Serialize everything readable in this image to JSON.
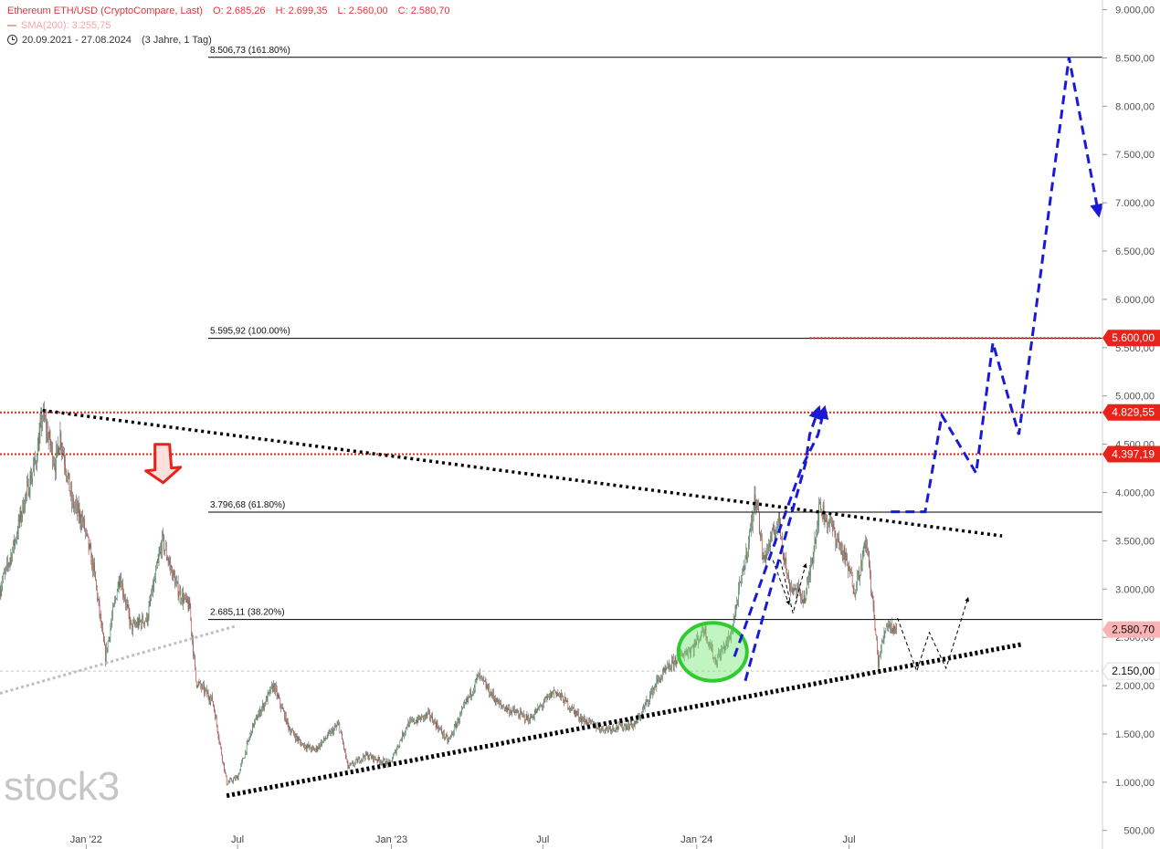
{
  "header": {
    "instrument": "Ethereum ETH/USD (CryptoCompare, Last)",
    "open": "O: 2.685,26",
    "high": "H: 2.699,35",
    "low": "L: 2.560,00",
    "close": "C: 2.580,70",
    "sma_label": "SMA(200): 3.255,75",
    "date_range": "20.09.2021 - 27.08.2024",
    "period": "(3 Jahre, 1 Tag)"
  },
  "logo_text": "stock3",
  "colors": {
    "candle_up": "#26a65b",
    "candle_down": "#d9342b",
    "accent_red": "#e8231a",
    "projection_blue": "#1a1ad6",
    "trend_black": "#000000",
    "support_grey": "#bfbfbf",
    "ellipse_green": "#2ecc2e"
  },
  "chart_data": {
    "type": "candlestick",
    "x_range": [
      "2021-09-20",
      "2024-08-27"
    ],
    "x_ticks": [
      "Jan '22",
      "Jul",
      "Jan '23",
      "Jul",
      "Jan '24",
      "Jul"
    ],
    "ylim": [
      450,
      9100
    ],
    "y_ticks": [
      {
        "v": 9000,
        "label": "9.000,00"
      },
      {
        "v": 8500,
        "label": "8.500,00"
      },
      {
        "v": 8000,
        "label": "8.000,00"
      },
      {
        "v": 7500,
        "label": "7.500,00"
      },
      {
        "v": 7000,
        "label": "7.000,00"
      },
      {
        "v": 6500,
        "label": "6.500,00"
      },
      {
        "v": 6000,
        "label": "6.000,00"
      },
      {
        "v": 5500,
        "label": "5.500,00"
      },
      {
        "v": 5000,
        "label": "5.000,00"
      },
      {
        "v": 4500,
        "label": "4.500,00"
      },
      {
        "v": 4000,
        "label": "4.000,00"
      },
      {
        "v": 3500,
        "label": "3.500,00"
      },
      {
        "v": 3000,
        "label": "3.000,00"
      },
      {
        "v": 2500,
        "label": "2.500,00"
      },
      {
        "v": 2000,
        "label": "2.000,00"
      },
      {
        "v": 1500,
        "label": "1.500,00"
      },
      {
        "v": 1000,
        "label": "1.000,00"
      },
      {
        "v": 500,
        "label": "500,00"
      }
    ],
    "fib_levels": [
      {
        "value": 8506.73,
        "label": "8.506,73 (161.80%)"
      },
      {
        "value": 5595.92,
        "label": "5.595,92 (100.00%)"
      },
      {
        "value": 3796.68,
        "label": "3.796,68 (61.80%)"
      },
      {
        "value": 2685.11,
        "label": "2.685,11 (38.20%)"
      }
    ],
    "price_tags": [
      {
        "value": 5600,
        "label": "5.600,00",
        "style": "red"
      },
      {
        "value": 4829.55,
        "label": "4.829,55",
        "style": "red"
      },
      {
        "value": 4397.19,
        "label": "4.397,19",
        "style": "red"
      },
      {
        "value": 2580.7,
        "label": "2.580,70",
        "style": "pink"
      },
      {
        "value": 2150,
        "label": "2.150,00",
        "style": "white"
      }
    ],
    "red_dotted_levels": [
      4829.55,
      4397.19
    ],
    "red_dotted_partial": {
      "value": 5600,
      "from": "2024-05-15"
    },
    "support_dotted_level": 2150,
    "price_path": [
      [
        "2021-09-20",
        3000
      ],
      [
        "2021-10-05",
        3400
      ],
      [
        "2021-10-20",
        3950
      ],
      [
        "2021-11-01",
        4300
      ],
      [
        "2021-11-10",
        4800
      ],
      [
        "2021-11-25",
        4300
      ],
      [
        "2021-12-01",
        4600
      ],
      [
        "2021-12-15",
        3900
      ],
      [
        "2021-12-28",
        3700
      ],
      [
        "2022-01-10",
        3200
      ],
      [
        "2022-01-24",
        2300
      ],
      [
        "2022-02-10",
        3150
      ],
      [
        "2022-02-24",
        2600
      ],
      [
        "2022-03-15",
        2700
      ],
      [
        "2022-04-02",
        3500
      ],
      [
        "2022-04-20",
        3000
      ],
      [
        "2022-05-05",
        2800
      ],
      [
        "2022-05-12",
        2050
      ],
      [
        "2022-06-01",
        1850
      ],
      [
        "2022-06-18",
        990
      ],
      [
        "2022-07-01",
        1050
      ],
      [
        "2022-07-20",
        1600
      ],
      [
        "2022-08-13",
        2000
      ],
      [
        "2022-09-01",
        1550
      ],
      [
        "2022-09-15",
        1400
      ],
      [
        "2022-10-01",
        1330
      ],
      [
        "2022-10-30",
        1600
      ],
      [
        "2022-11-10",
        1150
      ],
      [
        "2022-12-01",
        1280
      ],
      [
        "2022-12-30",
        1190
      ],
      [
        "2023-01-20",
        1600
      ],
      [
        "2023-02-15",
        1700
      ],
      [
        "2023-03-10",
        1420
      ],
      [
        "2023-04-15",
        2100
      ],
      [
        "2023-05-10",
        1800
      ],
      [
        "2023-06-15",
        1650
      ],
      [
        "2023-07-15",
        1950
      ],
      [
        "2023-08-17",
        1650
      ],
      [
        "2023-09-10",
        1550
      ],
      [
        "2023-10-20",
        1600
      ],
      [
        "2023-11-15",
        2050
      ],
      [
        "2023-12-10",
        2300
      ],
      [
        "2023-12-28",
        2400
      ],
      [
        "2024-01-10",
        2600
      ],
      [
        "2024-01-23",
        2250
      ],
      [
        "2024-02-10",
        2500
      ],
      [
        "2024-03-01",
        3400
      ],
      [
        "2024-03-12",
        4000
      ],
      [
        "2024-03-20",
        3300
      ],
      [
        "2024-04-08",
        3700
      ],
      [
        "2024-04-20",
        3050
      ],
      [
        "2024-05-10",
        2900
      ],
      [
        "2024-05-27",
        3850
      ],
      [
        "2024-06-10",
        3650
      ],
      [
        "2024-06-25",
        3350
      ],
      [
        "2024-07-08",
        3000
      ],
      [
        "2024-07-22",
        3500
      ],
      [
        "2024-08-05",
        2250
      ],
      [
        "2024-08-15",
        2650
      ],
      [
        "2024-08-27",
        2580.7
      ]
    ],
    "annotations": {
      "red_arrow": {
        "date": "2022-04-02",
        "value": 4120
      },
      "green_ellipse": {
        "center": [
          "2024-01-20",
          2350
        ],
        "date_span": [
          "2023-12-10",
          "2024-03-01"
        ],
        "value_span": [
          2050,
          2650
        ]
      },
      "resistance_trendline": {
        "from": [
          "2021-11-10",
          4850
        ],
        "to": [
          "2024-12-31",
          3550
        ]
      },
      "support_trendline": {
        "from": [
          "2022-06-18",
          860
        ],
        "to": [
          "2025-01-25",
          2430
        ]
      },
      "grey_support_line": {
        "from": [
          "2021-09-20",
          1920
        ],
        "to": [
          "2022-06-30",
          2620
        ]
      },
      "blue_projections": [
        [
          [
            "2024-02-28",
            2050
          ],
          [
            "2024-05-10",
            4300
          ],
          [
            "2024-05-15",
            4600
          ],
          [
            "2024-05-25",
            4850
          ]
        ],
        [
          [
            "2024-02-15",
            2300
          ],
          [
            "2024-05-05",
            4250
          ],
          [
            "2024-05-25",
            4600
          ],
          [
            "2024-06-01",
            4850
          ]
        ],
        [
          [
            "2024-08-20",
            3800
          ],
          [
            "2024-09-30",
            3800
          ],
          [
            "2024-10-20",
            4800
          ],
          [
            "2024-11-30",
            4200
          ],
          [
            "2024-12-20",
            5550
          ],
          [
            "2025-01-20",
            4600
          ],
          [
            "2025-02-05",
            5600
          ],
          [
            "2025-03-21",
            8506
          ],
          [
            "2025-04-25",
            6900
          ]
        ]
      ],
      "black_dashed_projections": [
        [
          [
            "2024-04-10",
            3300
          ],
          [
            "2024-04-25",
            2750
          ],
          [
            "2024-05-10",
            3250
          ]
        ],
        [
          [
            "2024-04-01",
            3300
          ],
          [
            "2024-04-20",
            2850
          ]
        ],
        [
          [
            "2024-08-28",
            2700
          ],
          [
            "2024-09-20",
            2150
          ],
          [
            "2024-10-05",
            2550
          ],
          [
            "2024-10-25",
            2180
          ],
          [
            "2024-11-20",
            2900
          ]
        ]
      ]
    }
  }
}
